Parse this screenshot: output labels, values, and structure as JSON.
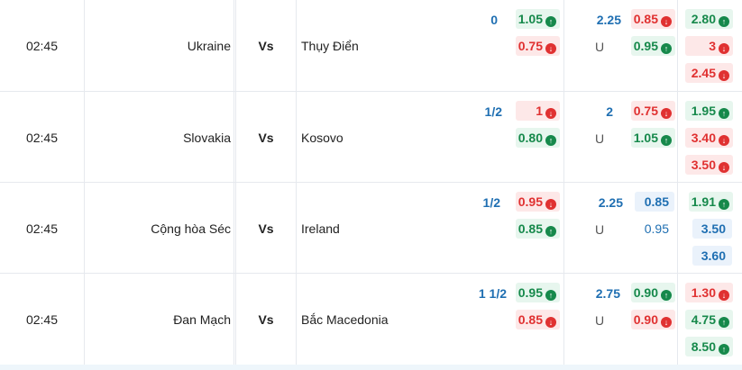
{
  "matches": [
    {
      "time": "02:45",
      "home": "Ukraine",
      "vs": "Vs",
      "away": "Thụy Điển",
      "handicap": "0",
      "ah_home": {
        "v": "1.05",
        "dir": "up"
      },
      "ah_away": {
        "v": "0.75",
        "dir": "down"
      },
      "ou_line": "2.25",
      "ou_u": "U",
      "ou_over": {
        "v": "0.85",
        "dir": "down"
      },
      "ou_under": {
        "v": "0.95",
        "dir": "up"
      },
      "x1": {
        "v": "2.80",
        "dir": "up"
      },
      "xx": {
        "v": "3",
        "dir": "down"
      },
      "x2": {
        "v": "2.45",
        "dir": "down"
      }
    },
    {
      "time": "02:45",
      "home": "Slovakia",
      "vs": "Vs",
      "away": "Kosovo",
      "handicap": "1/2",
      "ah_home": {
        "v": "1",
        "dir": "down"
      },
      "ah_away": {
        "v": "0.80",
        "dir": "up"
      },
      "ou_line": "2",
      "ou_u": "U",
      "ou_over": {
        "v": "0.75",
        "dir": "down"
      },
      "ou_under": {
        "v": "1.05",
        "dir": "up"
      },
      "x1": {
        "v": "1.95",
        "dir": "up"
      },
      "xx": {
        "v": "3.40",
        "dir": "down"
      },
      "x2": {
        "v": "3.50",
        "dir": "down"
      }
    },
    {
      "time": "02:45",
      "home": "Cộng hòa Séc",
      "vs": "Vs",
      "away": "Ireland",
      "handicap": "1/2",
      "ah_home": {
        "v": "0.95",
        "dir": "down"
      },
      "ah_away": {
        "v": "0.85",
        "dir": "up"
      },
      "ou_line": "2.25",
      "ou_u": "U",
      "ou_over": {
        "v": "0.85",
        "dir": "flat"
      },
      "ou_under": {
        "v": "0.95",
        "dir": "plain"
      },
      "x1": {
        "v": "1.91",
        "dir": "up"
      },
      "xx": {
        "v": "3.50",
        "dir": "flat"
      },
      "x2": {
        "v": "3.60",
        "dir": "flat"
      }
    },
    {
      "time": "02:45",
      "home": "Đan Mạch",
      "vs": "Vs",
      "away": "Bắc Macedonia",
      "handicap": "1 1/2",
      "ah_home": {
        "v": "0.95",
        "dir": "up"
      },
      "ah_away": {
        "v": "0.85",
        "dir": "down"
      },
      "ou_line": "2.75",
      "ou_u": "U",
      "ou_over": {
        "v": "0.90",
        "dir": "up"
      },
      "ou_under": {
        "v": "0.90",
        "dir": "down"
      },
      "x1": {
        "v": "1.30",
        "dir": "down"
      },
      "xx": {
        "v": "4.75",
        "dir": "up"
      },
      "x2": {
        "v": "8.50",
        "dir": "up"
      }
    }
  ],
  "icons": {
    "up": "arrow-up-circle-icon",
    "down": "arrow-down-circle-icon"
  },
  "colors": {
    "up": "#16894b",
    "down": "#e03131",
    "flat": "#1f6fb2",
    "grid": "#e6e9ee"
  }
}
